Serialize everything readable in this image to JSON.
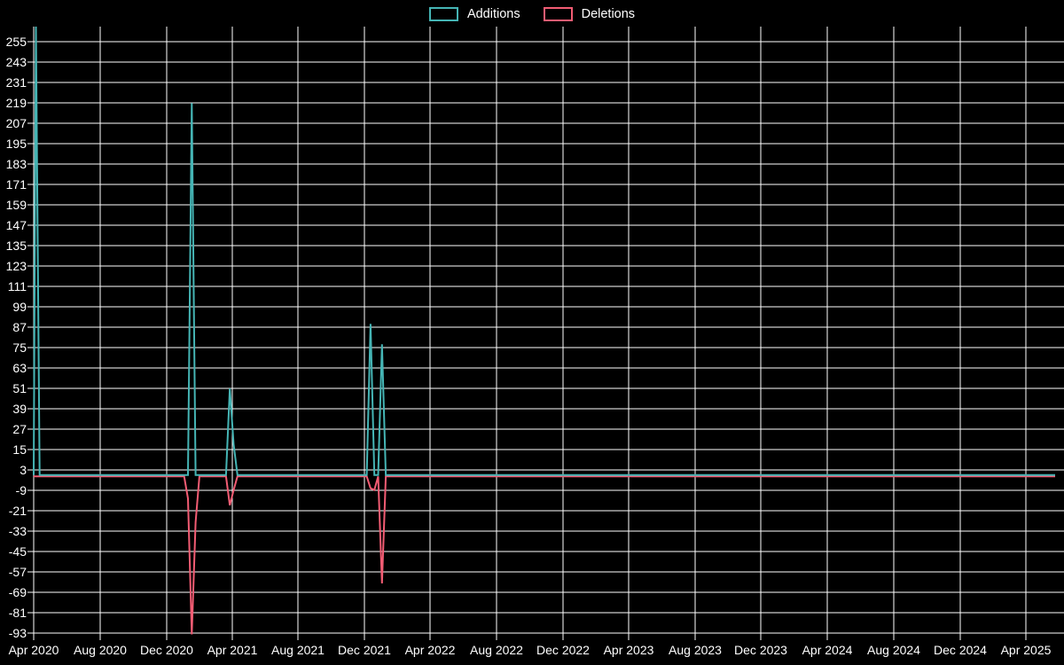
{
  "chart_data": {
    "type": "line",
    "title": "",
    "legend_position": "top-center",
    "grid": true,
    "background_color": "#000000",
    "grid_color": "#ffffff",
    "text_color": "#ffffff",
    "x_axis": {
      "domain": [
        "2020-04-01",
        "2025-05-25"
      ],
      "tick_labels": [
        "Apr 2020",
        "Aug 2020",
        "Dec 2020",
        "Apr 2021",
        "Aug 2021",
        "Dec 2021",
        "Apr 2022",
        "Aug 2022",
        "Dec 2022",
        "Apr 2023",
        "Aug 2023",
        "Dec 2023",
        "Apr 2024",
        "Aug 2024",
        "Dec 2024",
        "Apr 2025"
      ]
    },
    "y_axis": {
      "min": -93,
      "max": 264,
      "tick_step": 12,
      "ticks": [
        255,
        243,
        231,
        219,
        207,
        195,
        183,
        171,
        159,
        147,
        135,
        123,
        111,
        99,
        87,
        75,
        63,
        51,
        39,
        27,
        15,
        3,
        -9,
        -21,
        -33,
        -45,
        -57,
        -69,
        -81,
        -93
      ]
    },
    "series": [
      {
        "name": "Additions",
        "color": "#45b5b5",
        "baseline": 0,
        "points": [
          [
            "2020-04-01",
            0
          ],
          [
            "2020-04-05",
            264
          ],
          [
            "2020-04-12",
            0
          ],
          [
            "2021-01-10",
            0
          ],
          [
            "2021-01-17",
            219
          ],
          [
            "2021-01-24",
            0
          ],
          [
            "2021-03-21",
            0
          ],
          [
            "2021-03-28",
            51
          ],
          [
            "2021-04-04",
            18
          ],
          [
            "2021-04-11",
            0
          ],
          [
            "2021-12-05",
            0
          ],
          [
            "2021-12-12",
            89
          ],
          [
            "2021-12-19",
            0
          ],
          [
            "2021-12-26",
            0
          ],
          [
            "2022-01-02",
            77
          ],
          [
            "2022-01-09",
            0
          ],
          [
            "2025-05-25",
            0
          ]
        ]
      },
      {
        "name": "Deletions",
        "color": "#f25c73",
        "baseline": 0,
        "points": [
          [
            "2020-04-01",
            0
          ],
          [
            "2021-01-03",
            0
          ],
          [
            "2021-01-10",
            -13
          ],
          [
            "2021-01-17",
            -93
          ],
          [
            "2021-01-24",
            -27
          ],
          [
            "2021-01-31",
            0
          ],
          [
            "2021-03-21",
            0
          ],
          [
            "2021-03-28",
            -17
          ],
          [
            "2021-04-04",
            -8
          ],
          [
            "2021-04-11",
            0
          ],
          [
            "2021-12-05",
            0
          ],
          [
            "2021-12-12",
            -7
          ],
          [
            "2021-12-19",
            -8
          ],
          [
            "2021-12-26",
            0
          ],
          [
            "2022-01-02",
            -63
          ],
          [
            "2022-01-09",
            0
          ],
          [
            "2025-05-25",
            0
          ]
        ]
      }
    ]
  }
}
